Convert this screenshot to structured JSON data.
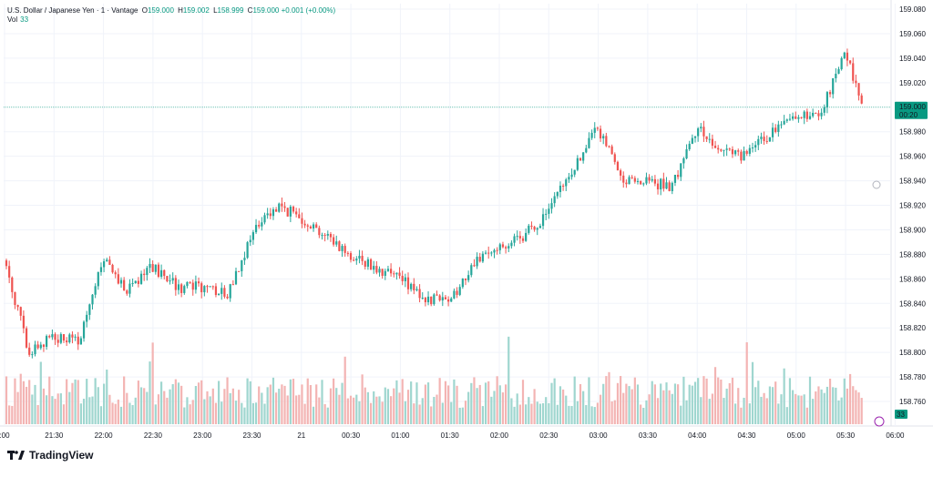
{
  "legend": {
    "symbol": "U.S. Dollar / Japanese Yen · 1 · Vantage",
    "open_key": "O",
    "open": "159.000",
    "high_key": "H",
    "high": "159.002",
    "low_key": "L",
    "low": "158.999",
    "close_key": "C",
    "close": "159.000",
    "change": "+0.001 (+0.00%)",
    "vol_label": "Vol",
    "vol_value": "33"
  },
  "price_axis": {
    "ticks": [
      "159.080",
      "159.060",
      "159.040",
      "159.020",
      "158.980",
      "158.960",
      "158.940",
      "158.920",
      "158.900",
      "158.880",
      "158.860",
      "158.840",
      "158.820",
      "158.800",
      "158.780",
      "158.760"
    ],
    "current_price": "159.000",
    "countdown": "00:20",
    "volume_tag": "33"
  },
  "time_axis": {
    "ticks": [
      ":00",
      "21:30",
      "22:00",
      "22:30",
      "23:00",
      "23:30",
      "21",
      "00:30",
      "01:00",
      "01:30",
      "02:00",
      "02:30",
      "03:00",
      "03:30",
      "04:00",
      "04:30",
      "05:00",
      "05:30",
      "06:00"
    ]
  },
  "branding": {
    "logo_text": "TradingView",
    "logo_icon": "tradingview-logo-icon"
  },
  "colors": {
    "up": "#26a69a",
    "down": "#ef5350",
    "vol_up": "#9fd6cf",
    "vol_down": "#f3b4b3",
    "price_tag": "#089981"
  },
  "chart_data": {
    "type": "candlestick",
    "ylim": [
      158.75,
      159.09
    ],
    "price_anchors": {
      "x": [
        "21:00",
        "21:15",
        "21:30",
        "21:45",
        "22:00",
        "22:15",
        "22:30",
        "22:45",
        "23:00",
        "23:15",
        "23:30",
        "23:45",
        "00:00",
        "00:15",
        "00:30",
        "00:45",
        "01:00",
        "01:15",
        "01:30",
        "01:45",
        "02:00",
        "02:15",
        "02:30",
        "02:45",
        "03:00",
        "03:15",
        "03:30",
        "03:45",
        "04:00",
        "04:15",
        "04:30",
        "04:45",
        "05:00",
        "05:15",
        "05:30",
        "05:40"
      ],
      "close": [
        158.875,
        158.8,
        158.813,
        158.808,
        158.875,
        158.85,
        158.87,
        158.853,
        158.853,
        158.848,
        158.895,
        158.92,
        158.91,
        158.895,
        158.88,
        158.87,
        158.86,
        158.845,
        158.84,
        158.875,
        158.885,
        158.895,
        158.915,
        158.95,
        158.983,
        158.94,
        158.94,
        158.935,
        158.983,
        158.965,
        158.96,
        158.98,
        158.99,
        158.995,
        159.045,
        159.0
      ]
    },
    "volume_range": [
      3,
      88
    ],
    "current_price": 159.0,
    "current_volume": 33
  }
}
